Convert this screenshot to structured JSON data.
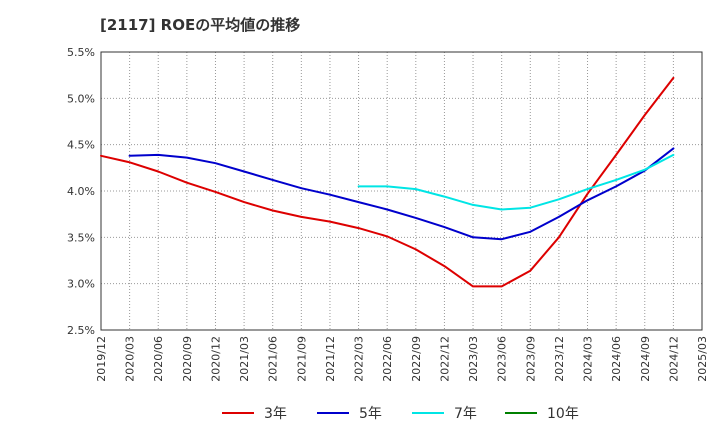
{
  "chart_data": {
    "type": "line",
    "title": "[2117]  ROEの平均値の推移",
    "xlabel": "",
    "ylabel": "",
    "ylim": [
      2.5,
      5.5
    ],
    "y_ticks": [
      "2.5%",
      "3.0%",
      "3.5%",
      "4.0%",
      "4.5%",
      "5.0%",
      "5.5%"
    ],
    "y_tick_values": [
      2.5,
      3.0,
      3.5,
      4.0,
      4.5,
      5.0,
      5.5
    ],
    "categories": [
      "2019/12",
      "2020/03",
      "2020/06",
      "2020/09",
      "2020/12",
      "2021/03",
      "2021/06",
      "2021/09",
      "2021/12",
      "2022/03",
      "2022/06",
      "2022/09",
      "2022/12",
      "2023/03",
      "2023/06",
      "2023/09",
      "2023/12",
      "2024/03",
      "2024/06",
      "2024/09",
      "2024/12",
      "2025/03"
    ],
    "grid": true,
    "legend_position": "bottom",
    "series": [
      {
        "name": "3年",
        "color": "#dd0000",
        "values": [
          4.38,
          4.31,
          4.21,
          4.09,
          3.99,
          3.88,
          3.79,
          3.72,
          3.67,
          3.6,
          3.51,
          3.37,
          3.19,
          2.97,
          2.97,
          3.14,
          3.5,
          3.97,
          4.39,
          4.82,
          5.22,
          null
        ]
      },
      {
        "name": "5年",
        "color": "#0000cc",
        "values": [
          null,
          4.38,
          4.39,
          4.36,
          4.3,
          4.21,
          4.12,
          4.03,
          3.96,
          3.88,
          3.8,
          3.71,
          3.61,
          3.5,
          3.48,
          3.56,
          3.72,
          3.9,
          4.05,
          4.22,
          4.46,
          null
        ]
      },
      {
        "name": "7年",
        "color": "#00e5e5",
        "values": [
          null,
          null,
          null,
          null,
          null,
          null,
          null,
          null,
          null,
          4.05,
          4.05,
          4.02,
          3.94,
          3.85,
          3.8,
          3.82,
          3.91,
          4.02,
          4.12,
          4.23,
          4.39,
          null
        ]
      },
      {
        "name": "10年",
        "color": "#008000",
        "values": [
          null,
          null,
          null,
          null,
          null,
          null,
          null,
          null,
          null,
          null,
          null,
          null,
          null,
          null,
          null,
          null,
          null,
          null,
          null,
          null,
          null,
          null
        ]
      }
    ]
  }
}
